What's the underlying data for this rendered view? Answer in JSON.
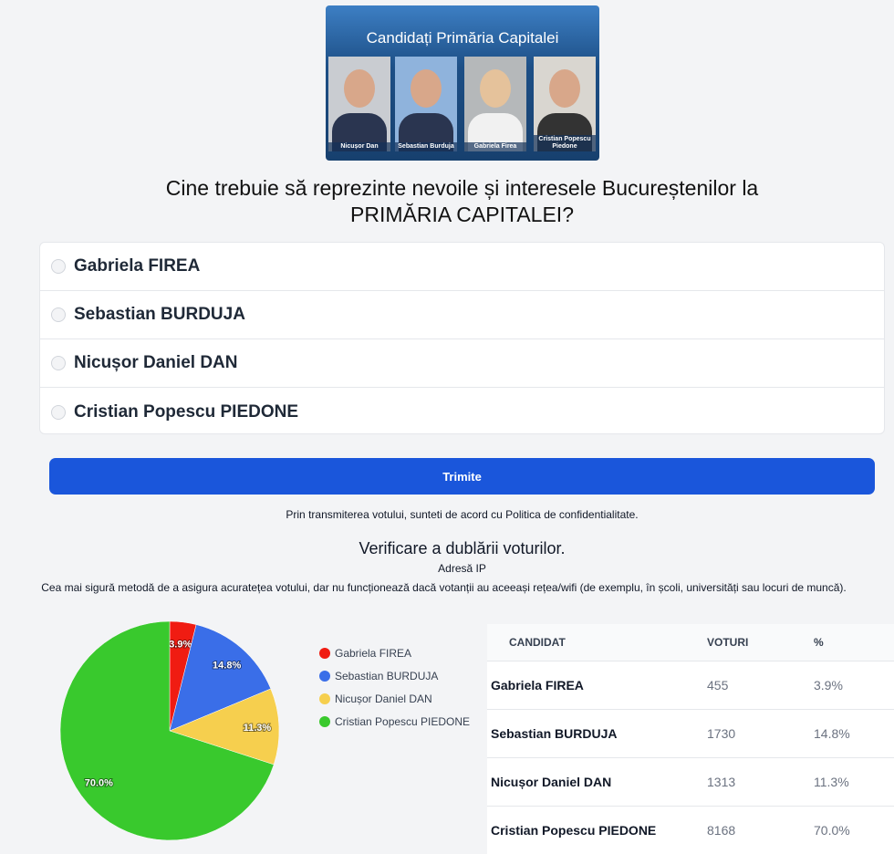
{
  "banner": {
    "title": "Candidați Primăria Capitalei",
    "captions": [
      "Nicușor Dan",
      "Sebastian Burduja",
      "Gabriela Firea",
      "Cristian Popescu Piedone"
    ]
  },
  "question": {
    "line1": "Cine trebuie să reprezinte nevoile și interesele Bucureștenilor la",
    "line2": "PRIMĂRIA CAPITALEI?"
  },
  "options": [
    "Gabriela FIREA",
    "Sebastian BURDUJA",
    "Nicușor Daniel DAN",
    "Cristian Popescu PIEDONE"
  ],
  "submit_label": "Trimite",
  "consent": "Prin transmiterea votului, sunteti de acord cu Politica de confidentialitate.",
  "verification": {
    "title": "Verificare a dublării voturilor.",
    "method": "Adresă IP",
    "description": "Cea mai sigură metodă de a asigura acuratețea votului, dar nu funcționează dacă votanții au aceeași rețea/wifi (de exemplu, în școli, universități sau locuri de muncă)."
  },
  "table": {
    "headers": [
      "CANDIDAT",
      "VOTURI",
      "%"
    ],
    "rows": [
      [
        "Gabriela FIREA",
        "455",
        "3.9%"
      ],
      [
        "Sebastian BURDUJA",
        "1730",
        "14.8%"
      ],
      [
        "Nicușor Daniel DAN",
        "1313",
        "11.3%"
      ],
      [
        "Cristian Popescu PIEDONE",
        "8168",
        "70.0%"
      ]
    ]
  },
  "chart_data": {
    "type": "pie",
    "categories": [
      "Gabriela FIREA",
      "Sebastian BURDUJA",
      "Nicușor Daniel DAN",
      "Cristian Popescu PIEDONE"
    ],
    "values": [
      455,
      1730,
      1313,
      8168
    ],
    "labels": [
      "3.9%",
      "14.8%",
      "11.3%",
      "70.0%"
    ],
    "colors": [
      "#f01c12",
      "#3a6ee8",
      "#f6cf4e",
      "#39c92d"
    ],
    "legend": "right"
  }
}
